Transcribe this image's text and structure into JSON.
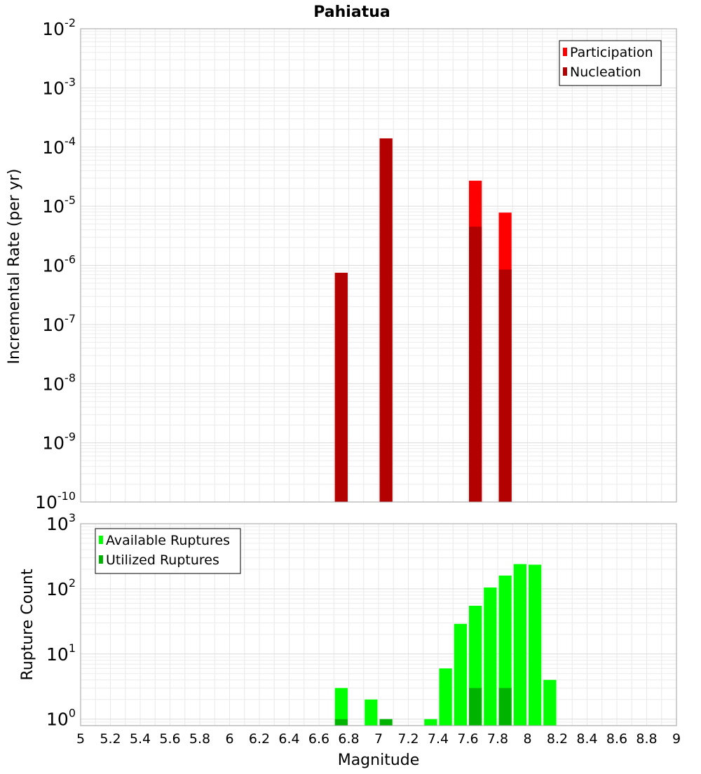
{
  "chart_data": {
    "title": "Pahiatua",
    "xlabel": "Magnitude",
    "xlim": [
      5,
      9
    ],
    "x_ticks": [
      "5",
      "5.2",
      "5.4",
      "5.6",
      "5.8",
      "6",
      "6.2",
      "6.4",
      "6.6",
      "6.8",
      "7",
      "7.2",
      "7.4",
      "7.6",
      "7.8",
      "8",
      "8.2",
      "8.4",
      "8.6",
      "8.8",
      "9"
    ],
    "bin_width": 0.1,
    "panels": [
      {
        "type": "bar",
        "ylabel": "Incremental Rate (per yr)",
        "yscale": "log",
        "ylim_exponents": [
          -10,
          -2
        ],
        "y_tick_exponents": [
          "-10",
          "-9",
          "-8",
          "-7",
          "-6",
          "-5",
          "-4",
          "-3",
          "-2"
        ],
        "legend_position": "top-right",
        "series": [
          {
            "name": "Participation",
            "color": "#ff0000",
            "points": [
              {
                "x": 6.75,
                "y": 7.5e-07
              },
              {
                "x": 7.05,
                "y": 0.00014
              },
              {
                "x": 7.65,
                "y": 2.7e-05
              },
              {
                "x": 7.85,
                "y": 7.8e-06
              }
            ]
          },
          {
            "name": "Nucleation",
            "color": "#b30000",
            "points": [
              {
                "x": 6.75,
                "y": 7.5e-07
              },
              {
                "x": 7.05,
                "y": 0.00014
              },
              {
                "x": 7.65,
                "y": 4.5e-06
              },
              {
                "x": 7.85,
                "y": 8.5e-07
              }
            ]
          }
        ]
      },
      {
        "type": "bar",
        "ylabel": "Rupture Count",
        "yscale": "log",
        "ylim_exponents": [
          -0.1,
          3
        ],
        "y_tick_exponents": [
          "0",
          "1",
          "2",
          "3"
        ],
        "legend_position": "top-left",
        "series": [
          {
            "name": "Available Ruptures",
            "color": "#00ff00",
            "points": [
              {
                "x": 6.75,
                "y": 3
              },
              {
                "x": 6.95,
                "y": 2
              },
              {
                "x": 7.35,
                "y": 1
              },
              {
                "x": 7.45,
                "y": 6
              },
              {
                "x": 7.55,
                "y": 29
              },
              {
                "x": 7.65,
                "y": 55
              },
              {
                "x": 7.75,
                "y": 105
              },
              {
                "x": 7.85,
                "y": 160
              },
              {
                "x": 7.95,
                "y": 240
              },
              {
                "x": 8.05,
                "y": 235
              },
              {
                "x": 8.15,
                "y": 4
              }
            ]
          },
          {
            "name": "Utilized Ruptures",
            "color": "#00b300",
            "points": [
              {
                "x": 6.75,
                "y": 1
              },
              {
                "x": 7.05,
                "y": 1
              },
              {
                "x": 7.65,
                "y": 3
              },
              {
                "x": 7.85,
                "y": 3
              }
            ]
          }
        ]
      }
    ]
  }
}
